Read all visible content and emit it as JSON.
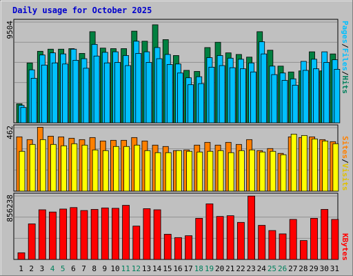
{
  "chart_data": [
    {
      "type": "bar",
      "title": "Daily usage for October 2025",
      "categories": [
        "1",
        "2",
        "3",
        "4",
        "5",
        "6",
        "7",
        "8",
        "9",
        "10",
        "11",
        "12",
        "13",
        "14",
        "15",
        "16",
        "17",
        "18",
        "19",
        "20",
        "21",
        "22",
        "23",
        "24",
        "25",
        "26",
        "27",
        "28",
        "29",
        "30",
        "31"
      ],
      "weekend_days": [
        "4",
        "5",
        "11",
        "12",
        "18",
        "19",
        "25",
        "26"
      ],
      "panels": [
        {
          "id": "hits",
          "ylabel_max": "9504",
          "ymax": 9504,
          "legend": [
            "Pages",
            "/",
            "Files",
            "/",
            "Hits"
          ],
          "series": [
            {
              "name": "Hits",
              "color": "#008040",
              "values": [
                1800,
                5650,
                6750,
                6950,
                6950,
                7000,
                6550,
                8600,
                7050,
                7000,
                7000,
                8650,
                7700,
                9250,
                7850,
                6350,
                4950,
                4850,
                7100,
                7600,
                6600,
                6450,
                6200,
                8600,
                6850,
                5350,
                4800,
                4900,
                6700,
                4900,
                6500
              ]
            },
            {
              "name": "Files",
              "color": "#00c0ff",
              "values": [
                1650,
                5000,
                6400,
                6600,
                6500,
                6950,
                6050,
                7400,
                6650,
                6700,
                6350,
                7700,
                6700,
                7100,
                6450,
                5550,
                4250,
                4350,
                6150,
                6350,
                6100,
                6000,
                5650,
                7650,
                5350,
                4700,
                4150,
                5800,
                6000,
                6700,
                5950
              ]
            },
            {
              "name": "Pages",
              "color": "#00c0ff",
              "values": [
                1450,
                4200,
                5450,
                5650,
                5550,
                5900,
                5150,
                6300,
                5650,
                5700,
                5400,
                6550,
                5700,
                6050,
                5500,
                4700,
                3600,
                3700,
                5250,
                5400,
                5200,
                5100,
                4800,
                6500,
                4550,
                4000,
                3550,
                4950,
                5100,
                5700,
                5050
              ]
            }
          ]
        },
        {
          "id": "visits",
          "ylabel_max": "462",
          "ymax": 462,
          "legend": [
            "Sites",
            "/",
            "Visits"
          ],
          "series": [
            {
              "name": "Visits",
              "color": "#ff8000",
              "values": [
                395,
                375,
                465,
                400,
                395,
                385,
                375,
                390,
                365,
                370,
                370,
                390,
                365,
                335,
                325,
                295,
                300,
                335,
                355,
                335,
                355,
                340,
                375,
                295,
                310,
                275,
                395,
                390,
                395,
                375,
                360
              ]
            },
            {
              "name": "Sites",
              "color": "#ffff00",
              "values": [
                290,
                340,
                375,
                340,
                330,
                345,
                335,
                300,
                295,
                325,
                325,
                335,
                295,
                280,
                280,
                295,
                290,
                285,
                290,
                295,
                280,
                295,
                300,
                285,
                290,
                265,
                415,
                405,
                380,
                365,
                345
              ]
            }
          ]
        },
        {
          "id": "kbytes",
          "ylabel_max": "856238",
          "ymax": 856238,
          "legend": [
            "KBytes"
          ],
          "series": [
            {
              "name": "KBytes",
              "color": "#ff0000",
              "values": [
                90000,
                480000,
                670000,
                640000,
                680000,
                700000,
                660000,
                675000,
                695000,
                690000,
                730000,
                450000,
                685000,
                670000,
                340000,
                295000,
                320000,
                555000,
                750000,
                580000,
                590000,
                500000,
                855000,
                460000,
                390000,
                345000,
                540000,
                255000,
                555000,
                675000,
                540000
              ]
            }
          ]
        }
      ]
    }
  ],
  "colors": {
    "background": "#c0c0c0",
    "plot_background": "#c0c0c0",
    "title": "#0000cc",
    "weekend_label": "#00805c",
    "weekday_label": "#000000",
    "kbytes_label": "#ff0000",
    "visits_label": "#ff8000",
    "sites_label": "#e0c000",
    "pages_label": "#00c0ff",
    "hits_label": "#00805c"
  }
}
